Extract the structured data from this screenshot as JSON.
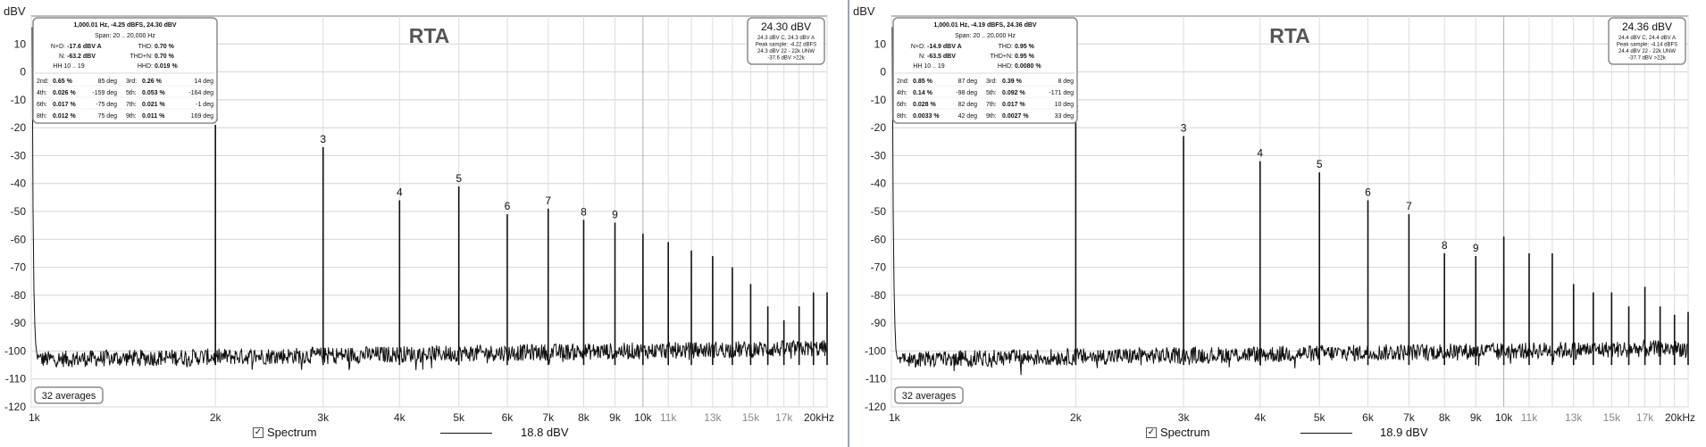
{
  "charts": [
    {
      "id": "left",
      "title": "RTA",
      "ylabel": "dBV",
      "yticks": [
        "10",
        "0",
        "-10",
        "-20",
        "-30",
        "-40",
        "-50",
        "-60",
        "-70",
        "-80",
        "-90",
        "-100",
        "-110",
        "-120"
      ],
      "xticks_major": [
        "1k",
        "2k",
        "3k",
        "4k",
        "5k",
        "6k",
        "7k",
        "8k",
        "9k",
        "10k",
        "20kHz"
      ],
      "xticks_minor": [
        "11k",
        "13k",
        "15k",
        "17k"
      ],
      "info_box": {
        "header": "1,000.01 Hz, -4.25 dBFS, 24.30 dBV",
        "span": "Span: 20 .. 20,000 Hz",
        "nd_label": "N+D:",
        "nd_value": "-17.6 dBV A",
        "thd_label": "THD:",
        "thd_value": "0.70 %",
        "n_label": "N:",
        "n_value": "-63.2 dBV",
        "thdn_label": "THD+N:",
        "thdn_value": "0.70 %",
        "hh_label": "HH 10 .. 19",
        "hhd_label": "HHD:",
        "hhd_value": "0.019 %",
        "rows": [
          [
            "2nd:",
            "0.65 %",
            "85 deg",
            "3rd:",
            "0.26 %",
            "14 deg"
          ],
          [
            "4th:",
            "0.026 %",
            "-159 deg",
            "5th:",
            "0.053 %",
            "-164 deg"
          ],
          [
            "6th:",
            "0.017 %",
            "-75 deg",
            "7th:",
            "0.021 %",
            "-1 deg"
          ],
          [
            "8th:",
            "0.012 %",
            "75 deg",
            "9th:",
            "0.011 %",
            "169 deg"
          ]
        ]
      },
      "level_box": {
        "main": "24.30 dBV",
        "lines": [
          "24.3 dBV C, 24.3 dBV A",
          "Peak sample: -4.22 dBFS",
          "24.3 dBV 22 - 22k UNW",
          "-37.6 dBV >22k"
        ]
      },
      "averages": "32 averages",
      "legend_label": "Spectrum",
      "legend_value": "18.8 dBV",
      "chart_data": {
        "type": "line",
        "x_scale": "log",
        "xlim": [
          1000,
          20000
        ],
        "ylim": [
          -120,
          20
        ],
        "noise_floor_dbv": -103,
        "harmonics": [
          {
            "label": "2",
            "freq": 2000,
            "dbv": -19
          },
          {
            "label": "3",
            "freq": 3000,
            "dbv": -27
          },
          {
            "label": "4",
            "freq": 4000,
            "dbv": -46
          },
          {
            "label": "5",
            "freq": 5000,
            "dbv": -41
          },
          {
            "label": "6",
            "freq": 6000,
            "dbv": -51
          },
          {
            "label": "7",
            "freq": 7000,
            "dbv": -49
          },
          {
            "label": "8",
            "freq": 8000,
            "dbv": -53
          },
          {
            "label": "9",
            "freq": 9000,
            "dbv": -54
          },
          {
            "label": "",
            "freq": 10000,
            "dbv": -58
          },
          {
            "label": "",
            "freq": 11000,
            "dbv": -61
          },
          {
            "label": "",
            "freq": 12000,
            "dbv": -64
          },
          {
            "label": "",
            "freq": 13000,
            "dbv": -66
          },
          {
            "label": "",
            "freq": 14000,
            "dbv": -70
          },
          {
            "label": "",
            "freq": 15000,
            "dbv": -76
          },
          {
            "label": "",
            "freq": 16000,
            "dbv": -84
          },
          {
            "label": "",
            "freq": 17000,
            "dbv": -89
          },
          {
            "label": "",
            "freq": 18000,
            "dbv": -84
          },
          {
            "label": "",
            "freq": 19000,
            "dbv": -79
          },
          {
            "label": "",
            "freq": 20000,
            "dbv": -79
          }
        ]
      }
    },
    {
      "id": "right",
      "title": "RTA",
      "ylabel": "dBV",
      "yticks": [
        "10",
        "0",
        "-10",
        "-20",
        "-30",
        "-40",
        "-50",
        "-60",
        "-70",
        "-80",
        "-90",
        "-100",
        "-110",
        "-120"
      ],
      "xticks_major": [
        "1k",
        "2k",
        "3k",
        "4k",
        "5k",
        "6k",
        "7k",
        "8k",
        "9k",
        "10k",
        "20kHz"
      ],
      "xticks_minor": [
        "11k",
        "13k",
        "15k",
        "17k"
      ],
      "info_box": {
        "header": "1,000.01 Hz, -4.19 dBFS, 24.36 dBV",
        "span": "Span: 20 .. 20,000 Hz",
        "nd_label": "N+D:",
        "nd_value": "-14.9 dBV A",
        "thd_label": "THD:",
        "thd_value": "0.95 %",
        "n_label": "N:",
        "n_value": "-63.5 dBV",
        "thdn_label": "THD+N:",
        "thdn_value": "0.95 %",
        "hh_label": "HH 10 .. 19",
        "hhd_label": "HHD:",
        "hhd_value": "0.0080 %",
        "rows": [
          [
            "2nd:",
            "0.85 %",
            "87 deg",
            "3rd:",
            "0.39 %",
            "8 deg"
          ],
          [
            "4th:",
            "0.14 %",
            "-98 deg",
            "5th:",
            "0.092 %",
            "-171 deg"
          ],
          [
            "6th:",
            "0.028 %",
            "82 deg",
            "7th:",
            "0.017 %",
            "10 deg"
          ],
          [
            "8th:",
            "0.0033 %",
            "42 deg",
            "9th:",
            "0.0027 %",
            "33 deg"
          ]
        ]
      },
      "level_box": {
        "main": "24.36 dBV",
        "lines": [
          "24.4 dBV C, 24.4 dBV A",
          "Peak sample: -4.14 dBFS",
          "24.4 dBV 22 - 22k UNW",
          "-37.7 dBV >22k"
        ]
      },
      "averages": "32 averages",
      "legend_label": "Spectrum",
      "legend_value": "18.9 dBV",
      "chart_data": {
        "type": "line",
        "x_scale": "log",
        "xlim": [
          1000,
          20000
        ],
        "ylim": [
          -120,
          20
        ],
        "noise_floor_dbv": -103,
        "harmonics": [
          {
            "label": "2",
            "freq": 2000,
            "dbv": -16
          },
          {
            "label": "3",
            "freq": 3000,
            "dbv": -23
          },
          {
            "label": "4",
            "freq": 4000,
            "dbv": -32
          },
          {
            "label": "5",
            "freq": 5000,
            "dbv": -36
          },
          {
            "label": "6",
            "freq": 6000,
            "dbv": -46
          },
          {
            "label": "7",
            "freq": 7000,
            "dbv": -51
          },
          {
            "label": "8",
            "freq": 8000,
            "dbv": -65
          },
          {
            "label": "9",
            "freq": 9000,
            "dbv": -66
          },
          {
            "label": "",
            "freq": 10000,
            "dbv": -59
          },
          {
            "label": "",
            "freq": 11000,
            "dbv": -65
          },
          {
            "label": "",
            "freq": 12000,
            "dbv": -65
          },
          {
            "label": "",
            "freq": 13000,
            "dbv": -76
          },
          {
            "label": "",
            "freq": 14000,
            "dbv": -79
          },
          {
            "label": "",
            "freq": 15000,
            "dbv": -79
          },
          {
            "label": "",
            "freq": 16000,
            "dbv": -84
          },
          {
            "label": "",
            "freq": 17000,
            "dbv": -77
          },
          {
            "label": "",
            "freq": 18000,
            "dbv": -84
          },
          {
            "label": "",
            "freq": 19000,
            "dbv": -87
          },
          {
            "label": "",
            "freq": 20000,
            "dbv": -86
          }
        ]
      }
    }
  ]
}
